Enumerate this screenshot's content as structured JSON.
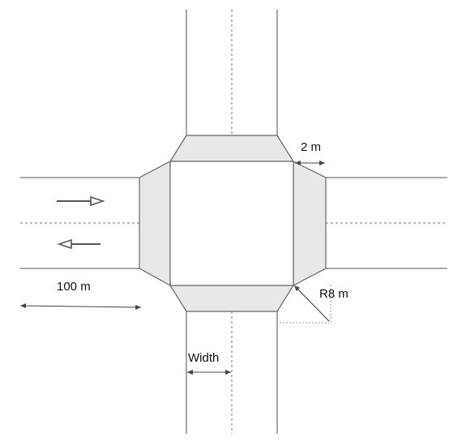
{
  "labels": {
    "crossing_width": "2 m",
    "approach_length": "100 m",
    "corner_radius": "R8 m",
    "lane_width": "Width"
  },
  "colors": {
    "background": "#ffffff",
    "road_edge": "#777777",
    "crossing_fill": "#e8e8e8",
    "crossing_stroke": "#666666",
    "centerline": "#777777",
    "dimension": "#444444",
    "traffic_arrow": "#555555",
    "radius_guide": "#999999"
  },
  "icons": {
    "eastbound": "right-arrow-icon",
    "westbound": "left-arrow-icon"
  }
}
